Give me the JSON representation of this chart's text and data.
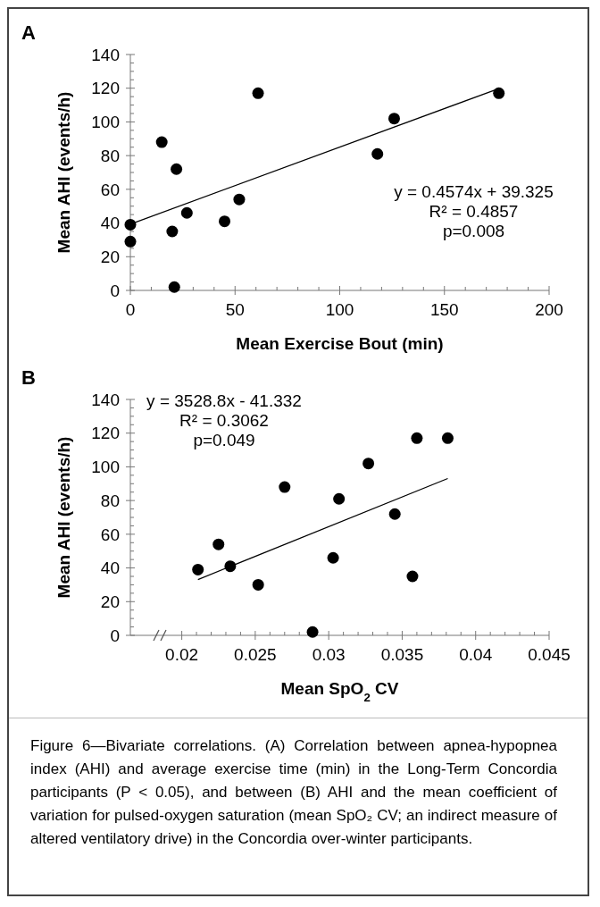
{
  "chart_data": [
    {
      "type": "scatter",
      "title": "A",
      "xlabel": "Mean Exercise Bout (min)",
      "ylabel": "Mean AHI (events/h)",
      "xlim": [
        0,
        200
      ],
      "xticks": [
        0,
        50,
        100,
        150,
        200
      ],
      "ylim": [
        0,
        140
      ],
      "yticks": [
        0,
        20,
        40,
        60,
        80,
        100,
        120,
        140
      ],
      "series": [
        {
          "color": "#000000",
          "marker": "circle",
          "x": [
            0,
            0,
            15,
            20,
            21,
            22,
            27,
            45,
            52,
            61,
            118,
            126,
            176
          ],
          "values": [
            39,
            29,
            88,
            35,
            2,
            72,
            46,
            41,
            54,
            117,
            81,
            102,
            117
          ]
        },
        {
          "type": "line",
          "color": "#000000",
          "marker": "none",
          "x": [
            0,
            176
          ],
          "values": [
            39.3,
            119.8
          ]
        }
      ],
      "annotations": [
        "y = 0.4574x + 39.325",
        "R² = 0.4857",
        "p=0.008"
      ]
    },
    {
      "type": "scatter",
      "title": "B",
      "xlabel": "Mean SpO$_{2}$ CV",
      "ylabel": "Mean AHI (events/h)",
      "xlim": [
        0.0165,
        0.045
      ],
      "xticks": [
        0.02,
        0.025,
        0.03,
        0.035,
        0.04,
        0.045
      ],
      "ylim": [
        0,
        140
      ],
      "yticks": [
        0,
        20,
        40,
        60,
        80,
        100,
        120,
        140
      ],
      "series": [
        {
          "color": "#000000",
          "marker": "circle",
          "x": [
            0.0211,
            0.0225,
            0.0233,
            0.0252,
            0.027,
            0.0289,
            0.0303,
            0.0307,
            0.0327,
            0.0345,
            0.0357,
            0.036,
            0.0381
          ],
          "values": [
            39,
            54,
            41,
            30,
            88,
            2,
            46,
            81,
            102,
            72,
            35,
            117,
            117
          ]
        },
        {
          "type": "line",
          "color": "#000000",
          "marker": "none",
          "x": [
            0.0211,
            0.0381
          ],
          "values": [
            33.1,
            93.1
          ]
        }
      ],
      "annotations": [
        "y = 3528.8x - 41.332",
        "R² = 0.3062",
        "p=0.049",
        "Figure 6—Bivariate correlations. (A) Correlation between apnea-hypopnea index (AHI) and average exercise time (min) in the Long-Term Concordia participants (P < 0.05), and between (B) AHI and the mean coefficient of variation for pulsed-oxygen saturation (mean SpO₂ CV; an indirect measure of altered ventilatory drive) in the Concordia over-winter participants."
      ]
    }
  ]
}
